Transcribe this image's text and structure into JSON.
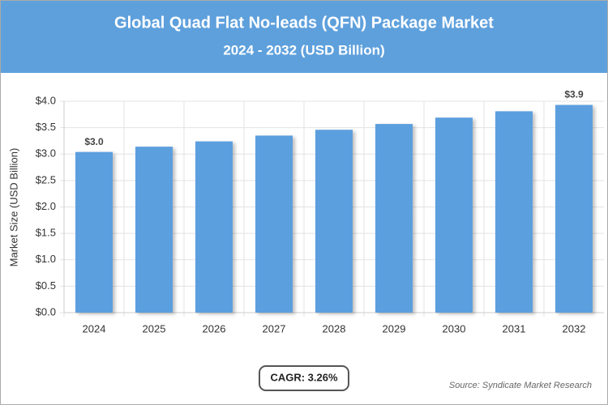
{
  "chart_data": {
    "type": "bar",
    "title": "Global Quad Flat No-leads (QFN) Package Market",
    "subtitle": "2024 - 2032 (USD Billion)",
    "y_label": "Market Size (USD Billion)",
    "categories": [
      "2024",
      "2025",
      "2026",
      "2027",
      "2028",
      "2029",
      "2030",
      "2031",
      "2032"
    ],
    "values": [
      3.04,
      3.14,
      3.24,
      3.35,
      3.46,
      3.57,
      3.69,
      3.81,
      3.93
    ],
    "value_labels": [
      "$3.0",
      null,
      null,
      null,
      null,
      null,
      null,
      null,
      "$3.9"
    ],
    "color": "#5b9fdf",
    "ylim": [
      0,
      4
    ],
    "yticks": [
      {
        "value": 0,
        "label": "$0.0"
      },
      {
        "value": 0.5,
        "label": "$0.5"
      },
      {
        "value": 1,
        "label": "$1.0"
      },
      {
        "value": 1.5,
        "label": "$1.5"
      },
      {
        "value": 2,
        "label": "$2.0"
      },
      {
        "value": 2.5,
        "label": "$2.5"
      },
      {
        "value": 3,
        "label": "$3.0"
      },
      {
        "value": 3.5,
        "label": "$3.5"
      },
      {
        "value": 4,
        "label": "$4.0"
      }
    ],
    "grid": true,
    "cagr": "CAGR: 3.26%",
    "source": "Source: Syndicate Market Research"
  }
}
